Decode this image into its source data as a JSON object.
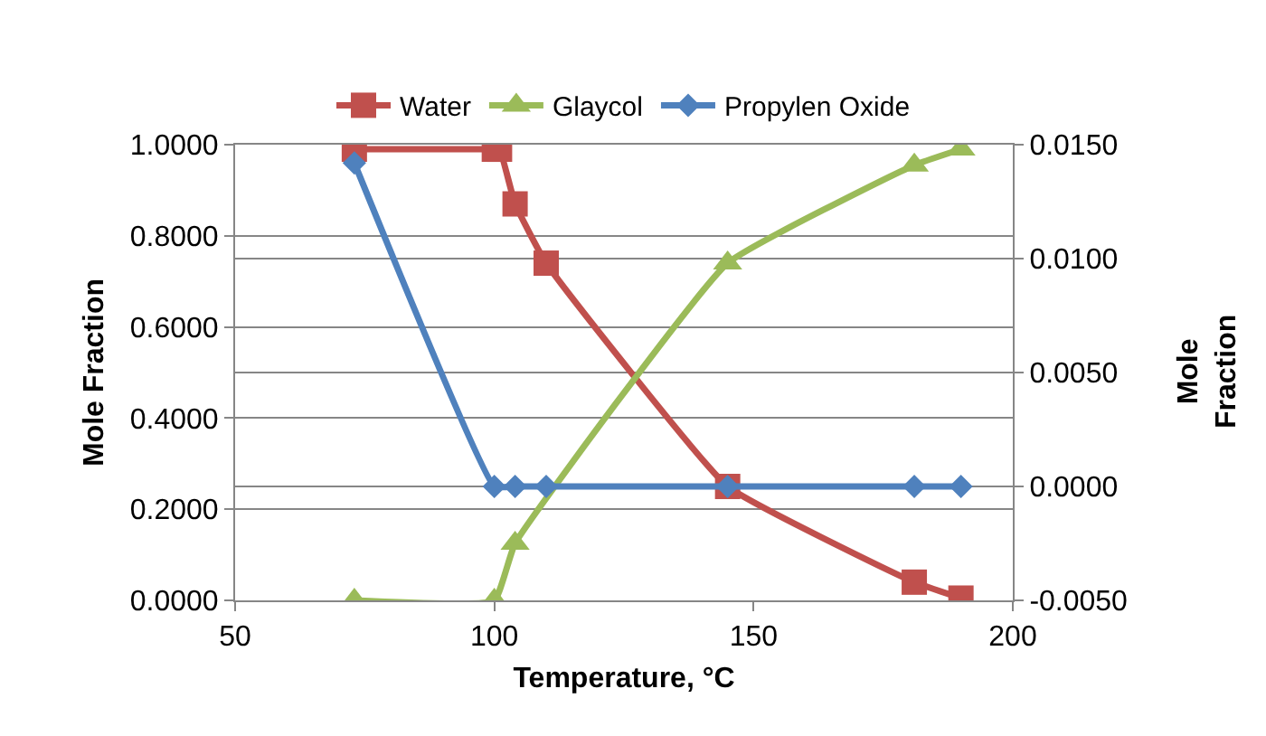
{
  "chart_data": {
    "type": "line",
    "xlabel": "Temperature, °C",
    "ylabel": "Mole Fraction",
    "y2label": "Mole Fraction",
    "xlim": [
      50,
      200
    ],
    "xticks": [
      50,
      100,
      150,
      200
    ],
    "ylim": [
      0,
      1
    ],
    "yticks": [
      {
        "value": 0,
        "label": "0.0000"
      },
      {
        "value": 0.2,
        "label": "0.2000"
      },
      {
        "value": 0.4,
        "label": "0.4000"
      },
      {
        "value": 0.6,
        "label": "0.6000"
      },
      {
        "value": 0.8,
        "label": "0.8000"
      },
      {
        "value": 1,
        "label": "1.0000"
      }
    ],
    "y2lim": [
      -0.005,
      0.015
    ],
    "y2ticks": [
      {
        "value": -0.005,
        "label": "-0.0050"
      },
      {
        "value": 0,
        "label": "0.0000"
      },
      {
        "value": 0.005,
        "label": "0.0050"
      },
      {
        "value": 0.01,
        "label": "0.0100"
      },
      {
        "value": 0.015,
        "label": "0.0150"
      }
    ],
    "grid": "y",
    "legend": "top",
    "series": [
      {
        "name": "Water",
        "color": "#c0504d",
        "marker": "square",
        "x": [
          73,
          100,
          101,
          104,
          110,
          145,
          181,
          190
        ],
        "values": [
          0.99,
          0.99,
          0.99,
          0.87,
          0.74,
          0.25,
          0.04,
          0.005
        ]
      },
      {
        "name": "Glaycol",
        "color": "#9bbb59",
        "marker": "triangle",
        "x": [
          73,
          100,
          104,
          145,
          181,
          190
        ],
        "values": [
          0,
          0,
          0.125,
          0.74,
          0.955,
          0.99
        ]
      },
      {
        "name": "Propylen Oxide",
        "color": "#4f81bd",
        "marker": "diamond",
        "axis": "y2",
        "x": [
          73,
          100,
          104,
          110,
          145,
          181,
          190
        ],
        "values": [
          0.0142,
          0,
          0,
          0,
          0,
          0,
          0
        ]
      }
    ]
  }
}
